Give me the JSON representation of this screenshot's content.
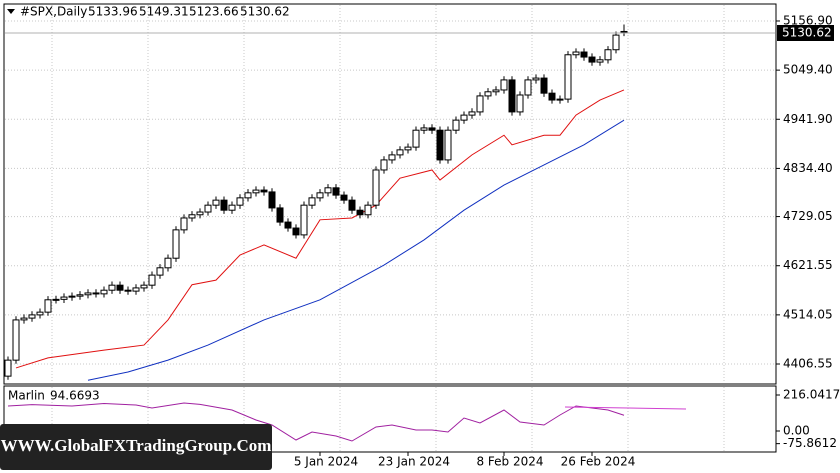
{
  "chart_data": [
    {
      "type": "candlestick",
      "title": "#SPX,Daily",
      "categories": [
        null,
        null,
        null,
        null,
        null,
        null,
        null,
        null,
        null,
        null,
        null,
        null,
        null,
        null,
        null,
        null,
        null,
        null,
        null,
        null,
        null,
        null,
        null,
        null,
        null,
        null,
        null,
        null,
        null,
        null,
        null,
        null,
        null,
        null,
        null,
        null,
        null,
        null,
        null,
        "5 Jan 2024",
        null,
        null,
        null,
        null,
        null,
        null,
        null,
        null,
        null,
        null,
        "23 Jan 2024",
        null,
        null,
        null,
        null,
        null,
        null,
        null,
        null,
        null,
        null,
        null,
        "8 Feb 2024",
        null,
        null,
        null,
        null,
        null,
        null,
        null,
        null,
        null,
        null,
        "26 Feb 2024",
        null,
        null,
        null,
        null
      ],
      "open": [
        4380,
        4415,
        4503,
        4507,
        4514,
        4520,
        4547,
        4548,
        4553,
        4555,
        4558,
        4562,
        4560,
        4568,
        4579,
        4568,
        4566,
        4573,
        4579,
        4601,
        4617,
        4638,
        4700,
        4726,
        4733,
        4739,
        4754,
        4765,
        4743,
        4754,
        4770,
        4781,
        4787,
        4783,
        4748,
        4717,
        4704,
        4689,
        4754,
        4770,
        4781,
        4792,
        4776,
        4765,
        4743,
        4733,
        4754,
        4831,
        4853,
        4864,
        4875,
        4881,
        4918,
        4923,
        4918,
        4853,
        4918,
        4940,
        4951,
        4958,
        4993,
        5002,
        5006,
        5028,
        4958,
        4995,
        5028,
        5032,
        4999,
        4984,
        4986,
        5083,
        5089,
        5078,
        5067,
        5072,
        5094,
        5133.96
      ],
      "high": [
        4423,
        4511,
        4515,
        4522,
        4528,
        4555,
        4556,
        4561,
        4563,
        4566,
        4570,
        4570,
        4576,
        4587,
        4587,
        4576,
        4581,
        4587,
        4609,
        4625,
        4646,
        4708,
        4734,
        4741,
        4747,
        4762,
        4773,
        4773,
        4762,
        4778,
        4789,
        4795,
        4795,
        4791,
        4756,
        4725,
        4712,
        4762,
        4778,
        4789,
        4800,
        4800,
        4784,
        4773,
        4751,
        4762,
        4839,
        4861,
        4872,
        4883,
        4889,
        4926,
        4931,
        4931,
        4926,
        4926,
        4948,
        4959,
        4966,
        5001,
        5010,
        5014,
        5036,
        5036,
        5003,
        5036,
        5040,
        5040,
        5007,
        4994,
        5091,
        5097,
        5097,
        5086,
        5080,
        5102,
        5134,
        5149.31
      ],
      "low": [
        4372,
        4407,
        4495,
        4499,
        4506,
        4512,
        4539,
        4540,
        4545,
        4547,
        4550,
        4552,
        4552,
        4560,
        4560,
        4558,
        4558,
        4565,
        4571,
        4593,
        4609,
        4630,
        4692,
        4718,
        4725,
        4731,
        4746,
        4735,
        4735,
        4746,
        4762,
        4773,
        4775,
        4740,
        4709,
        4696,
        4681,
        4681,
        4746,
        4762,
        4773,
        4768,
        4757,
        4735,
        4725,
        4725,
        4746,
        4823,
        4845,
        4856,
        4867,
        4873,
        4910,
        4910,
        4845,
        4845,
        4910,
        4932,
        4943,
        4950,
        4985,
        4994,
        4998,
        4950,
        4950,
        4987,
        5020,
        4991,
        4976,
        4976,
        4978,
        5075,
        5070,
        5059,
        5059,
        5064,
        5086,
        5123.66
      ],
      "close": [
        4415,
        4503,
        4507,
        4514,
        4520,
        4547,
        4548,
        4553,
        4555,
        4558,
        4562,
        4560,
        4568,
        4579,
        4568,
        4566,
        4573,
        4579,
        4601,
        4617,
        4638,
        4700,
        4726,
        4733,
        4739,
        4754,
        4765,
        4743,
        4754,
        4770,
        4781,
        4787,
        4783,
        4748,
        4717,
        4704,
        4689,
        4754,
        4770,
        4781,
        4792,
        4776,
        4765,
        4743,
        4733,
        4754,
        4831,
        4853,
        4864,
        4875,
        4881,
        4918,
        4923,
        4918,
        4853,
        4918,
        4940,
        4951,
        4958,
        4993,
        5002,
        5006,
        5028,
        4958,
        4995,
        5028,
        5032,
        4999,
        4984,
        4986,
        5083,
        5089,
        5078,
        5067,
        5072,
        5094,
        5126,
        5130.62
      ],
      "series": [
        {
          "color": "#e01010",
          "x": [
            1,
            5,
            12,
            17,
            20,
            23,
            26,
            29,
            32,
            36,
            39,
            43,
            46,
            49,
            53,
            54,
            58,
            62,
            63,
            67,
            69,
            71,
            74,
            77
          ],
          "values": [
            4398,
            4420,
            4437,
            4448,
            4503,
            4580,
            4590,
            4645,
            4667,
            4638,
            4722,
            4726,
            4754,
            4813,
            4831,
            4809,
            4864,
            4907,
            4886,
            4907,
            4907,
            4951,
            4984,
            5006
          ]
        },
        {
          "color": "#1030c0",
          "x": [
            10,
            15,
            20,
            25,
            32,
            39,
            47,
            52,
            57,
            62,
            67,
            72,
            77
          ],
          "values": [
            4371,
            4389,
            4415,
            4448,
            4503,
            4547,
            4623,
            4678,
            4743,
            4798,
            4842,
            4886,
            4940
          ]
        }
      ],
      "ylim": [
        4367.2,
        5185.3
      ],
      "yticks": [
        {
          "value": 5156.9,
          "label": "5156.90"
        },
        {
          "value": 5049.4,
          "label": "5049.40"
        },
        {
          "value": 4941.9,
          "label": "4941.90"
        },
        {
          "value": 4834.4,
          "label": "4834.40"
        },
        4729.05,
        {
          "value": 4621.55,
          "label": "4621.55"
        },
        {
          "value": 4514.05,
          "label": "4514.05"
        },
        {
          "value": 4406.55,
          "label": "4406.55"
        }
      ],
      "grid": true,
      "up_color": "#ffffff",
      "down_color": "#000000",
      "watermark": "WWW.GlobalFXTradingGroup.Com"
    },
    {
      "type": "line",
      "series": [
        {
          "name": "Marlin",
          "color": "#a020a0",
          "x": [
            0,
            3,
            8,
            12,
            16,
            18,
            22,
            24,
            28,
            31,
            33,
            36,
            38,
            41,
            43,
            46,
            48,
            51,
            53,
            55,
            57,
            59,
            62,
            64,
            67,
            69,
            71,
            73,
            75,
            77
          ],
          "values": [
            150,
            158,
            150,
            165,
            156,
            138,
            168,
            160,
            126,
            66,
            36,
            -54,
            -6,
            -30,
            -60,
            24,
            36,
            6,
            6,
            -6,
            78,
            48,
            126,
            54,
            36,
            96,
            150,
            138,
            126,
            94.6693
          ]
        }
      ],
      "ylim": [
        -126,
        270
      ],
      "yticks": [
        216.0417,
        {
          "value": 0,
          "label": "0.00"
        },
        -75.8612
      ]
    }
  ]
}
